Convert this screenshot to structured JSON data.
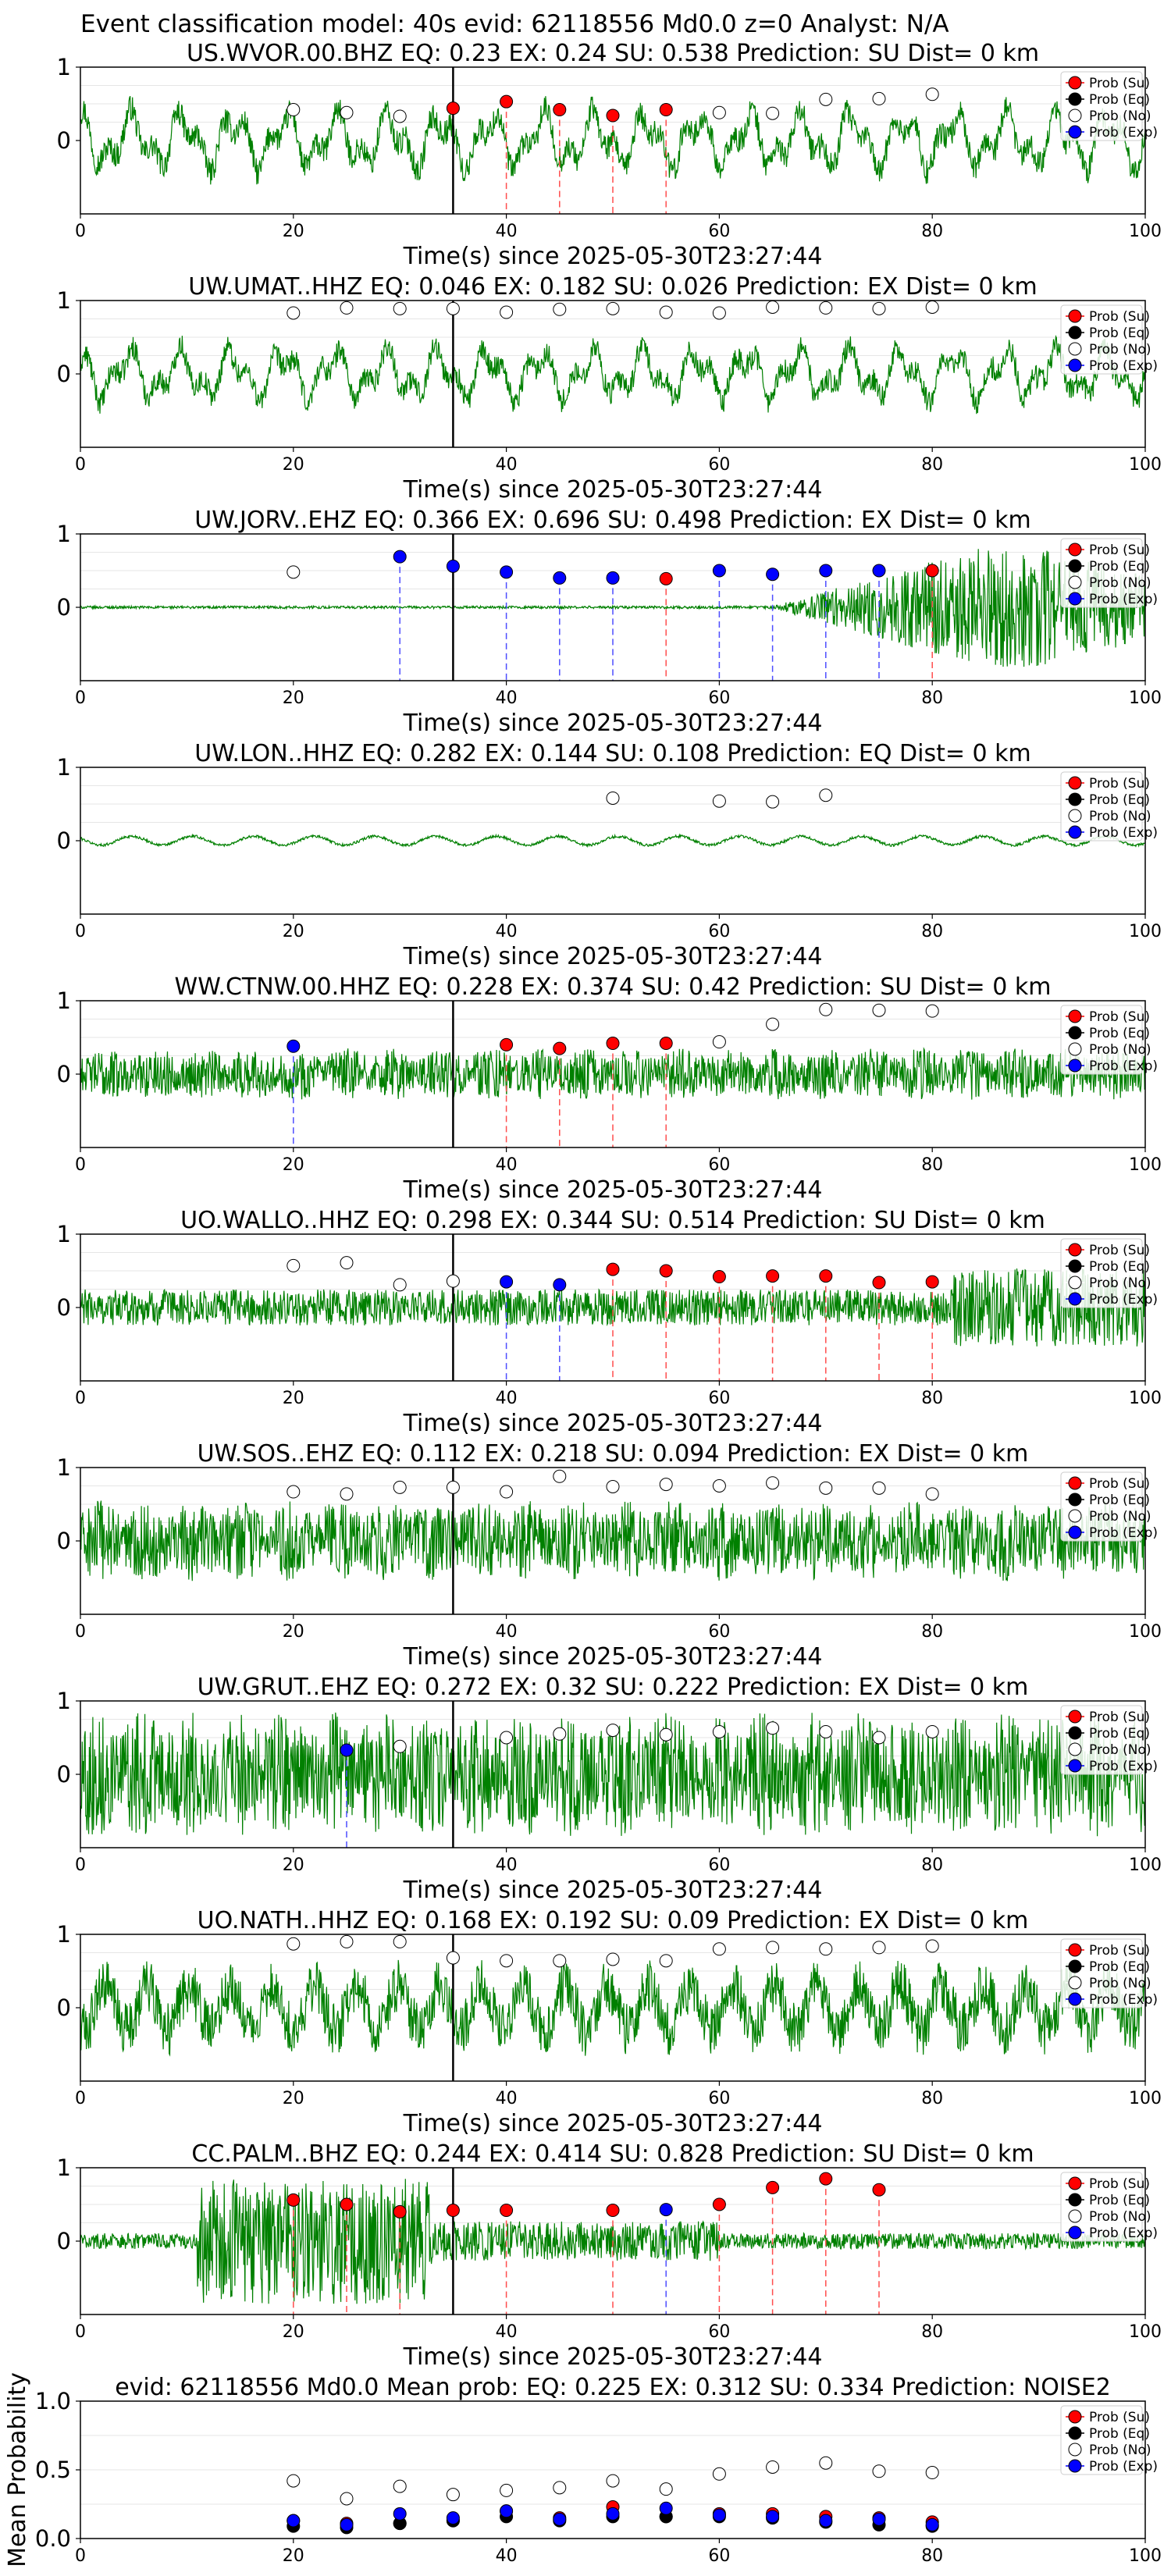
{
  "figure_title": "Event classification model: 40s evid: 62118556 Md0.0 z=0 Analyst: N/A",
  "legend_labels": [
    "Prob (Su)",
    "Prob (Eq)",
    "Prob (No)",
    "Prob (Exp)"
  ],
  "colors": {
    "su": "#ff0000",
    "eq": "#000000",
    "no": "#ffffff",
    "exp": "#0000ff",
    "waveform": "#008000",
    "su_line": "#ff4d4d",
    "exp_line": "#4d4dff",
    "origin_line": "#000000"
  },
  "chart_data": [
    {
      "type": "scatter",
      "station": "US.WVOR.00.BHZ",
      "title": "US.WVOR.00.BHZ   EQ: 0.23  EX: 0.24  SU: 0.538   Prediction: SU    Dist= 0 km",
      "xlabel": "Time(s) since 2025-05-30T23:27:44",
      "xlim": [
        0,
        100
      ],
      "ylim": [
        -1,
        1
      ],
      "xticks": [
        "0",
        "20",
        "40",
        "60",
        "80",
        "100"
      ],
      "yticks": [
        "1",
        "0"
      ],
      "origin_time": 35,
      "waveform": {
        "style": "med",
        "amplitude": 0.5
      },
      "times": [
        20,
        25,
        30,
        35,
        40,
        45,
        50,
        55,
        60,
        65,
        70,
        75,
        80
      ],
      "predicted": [
        "no",
        "no",
        "no",
        "su",
        "su",
        "su",
        "su",
        "su",
        "no",
        "no",
        "no",
        "no",
        "no"
      ],
      "probs": [
        0.42,
        0.38,
        0.33,
        0.44,
        0.53,
        0.42,
        0.34,
        0.42,
        0.38,
        0.37,
        0.56,
        0.57,
        0.63
      ],
      "legend": "upper right",
      "grid": true
    },
    {
      "type": "scatter",
      "station": "UW.UMAT..HHZ",
      "title": "UW.UMAT..HHZ   EQ: 0.046  EX: 0.182  SU: 0.026   Prediction: EX    Dist= 0 km",
      "xlabel": "Time(s) since 2025-05-30T23:27:44",
      "xlim": [
        0,
        100
      ],
      "ylim": [
        -1,
        1
      ],
      "xticks": [
        "0",
        "20",
        "40",
        "60",
        "80",
        "100"
      ],
      "yticks": [
        "1",
        "0"
      ],
      "origin_time": 35,
      "waveform": {
        "style": "med",
        "amplitude": 0.45
      },
      "times": [
        20,
        25,
        30,
        35,
        40,
        45,
        50,
        55,
        60,
        65,
        70,
        75,
        80
      ],
      "predicted": [
        "no",
        "no",
        "no",
        "no",
        "no",
        "no",
        "no",
        "no",
        "no",
        "no",
        "no",
        "no",
        "no"
      ],
      "probs": [
        0.83,
        0.9,
        0.89,
        0.89,
        0.84,
        0.88,
        0.89,
        0.84,
        0.83,
        0.91,
        0.9,
        0.89,
        0.91
      ],
      "legend": "upper right",
      "grid": true
    },
    {
      "type": "scatter",
      "station": "UW.JORV..EHZ",
      "title": "UW.JORV..EHZ   EQ: 0.366  EX: 0.696  SU: 0.498   Prediction: EX    Dist= 0 km",
      "xlabel": "Time(s) since 2025-05-30T23:27:44",
      "xlim": [
        0,
        100
      ],
      "ylim": [
        -1,
        1
      ],
      "xticks": [
        "0",
        "20",
        "40",
        "60",
        "80",
        "100"
      ],
      "yticks": [
        "1",
        "0"
      ],
      "origin_time": 35,
      "waveform": {
        "style": "quiet_then_burst",
        "amplitude": 0.9
      },
      "times": [
        20,
        30,
        35,
        40,
        45,
        50,
        55,
        60,
        65,
        70,
        75,
        80
      ],
      "predicted": [
        "no",
        "exp",
        "exp",
        "exp",
        "exp",
        "exp",
        "su",
        "exp",
        "exp",
        "exp",
        "exp",
        "su"
      ],
      "probs": [
        0.48,
        0.69,
        0.56,
        0.48,
        0.4,
        0.4,
        0.39,
        0.5,
        0.45,
        0.5,
        0.5,
        0.5
      ],
      "legend": "upper right",
      "grid": true
    },
    {
      "type": "scatter",
      "station": "UW.LON..HHZ",
      "title": "UW.LON..HHZ   EQ: 0.282  EX: 0.144  SU: 0.108   Prediction: EQ    Dist= 0 km",
      "xlabel": "Time(s) since 2025-05-30T23:27:44",
      "xlim": [
        0,
        100
      ],
      "ylim": [
        -1,
        1
      ],
      "xticks": [
        "0",
        "20",
        "40",
        "60",
        "80",
        "100"
      ],
      "yticks": [
        "1",
        "0"
      ],
      "origin_time": null,
      "waveform": {
        "style": "flat_wavy",
        "amplitude": 0.06
      },
      "times": [
        50,
        60,
        65,
        70
      ],
      "predicted": [
        "no",
        "no",
        "no",
        "no"
      ],
      "probs": [
        0.58,
        0.54,
        0.53,
        0.62
      ],
      "legend": "upper right",
      "grid": true
    },
    {
      "type": "scatter",
      "station": "WW.CTNW.00.HHZ",
      "title": "WW.CTNW.00.HHZ   EQ: 0.228  EX: 0.374  SU: 0.42   Prediction: SU    Dist= 0 km",
      "xlabel": "Time(s) since 2025-05-30T23:27:44",
      "xlim": [
        0,
        100
      ],
      "ylim": [
        -1,
        1
      ],
      "xticks": [
        "0",
        "20",
        "40",
        "60",
        "80",
        "100"
      ],
      "yticks": [
        "1",
        "0"
      ],
      "origin_time": 35,
      "waveform": {
        "style": "noisy",
        "amplitude": 0.35
      },
      "times": [
        20,
        40,
        45,
        50,
        55,
        60,
        65,
        70,
        75,
        80
      ],
      "predicted": [
        "exp",
        "su",
        "su",
        "su",
        "su",
        "no",
        "no",
        "no",
        "no",
        "no"
      ],
      "probs": [
        0.38,
        0.4,
        0.35,
        0.42,
        0.42,
        0.44,
        0.68,
        0.88,
        0.87,
        0.86
      ],
      "legend": "upper right",
      "grid": true
    },
    {
      "type": "scatter",
      "station": "UO.WALLO..HHZ",
      "title": "UO.WALLO..HHZ   EQ: 0.298  EX: 0.344  SU: 0.514   Prediction: SU    Dist= 0 km",
      "xlabel": "Time(s) since 2025-05-30T23:27:44",
      "xlim": [
        0,
        100
      ],
      "ylim": [
        -1,
        1
      ],
      "xticks": [
        "0",
        "20",
        "40",
        "60",
        "80",
        "100"
      ],
      "yticks": [
        "1",
        "0"
      ],
      "origin_time": 35,
      "waveform": {
        "style": "noisy_growing",
        "amplitude": 0.35
      },
      "times": [
        20,
        25,
        30,
        35,
        40,
        45,
        50,
        55,
        60,
        65,
        70,
        75,
        80
      ],
      "predicted": [
        "no",
        "no",
        "no",
        "no",
        "exp",
        "exp",
        "su",
        "su",
        "su",
        "su",
        "su",
        "su",
        "su"
      ],
      "probs": [
        0.57,
        0.61,
        0.31,
        0.36,
        0.35,
        0.31,
        0.52,
        0.5,
        0.42,
        0.43,
        0.43,
        0.34,
        0.35
      ],
      "legend": "upper right",
      "grid": true
    },
    {
      "type": "scatter",
      "station": "UW.SOS..EHZ",
      "title": "UW.SOS..EHZ   EQ: 0.112  EX: 0.218  SU: 0.094   Prediction: EX    Dist= 0 km",
      "xlabel": "Time(s) since 2025-05-30T23:27:44",
      "xlim": [
        0,
        100
      ],
      "ylim": [
        -1,
        1
      ],
      "xticks": [
        "0",
        "20",
        "40",
        "60",
        "80",
        "100"
      ],
      "yticks": [
        "1",
        "0"
      ],
      "origin_time": 35,
      "waveform": {
        "style": "noisy",
        "amplitude": 0.55
      },
      "times": [
        20,
        25,
        30,
        35,
        40,
        45,
        50,
        55,
        60,
        65,
        70,
        75,
        80
      ],
      "predicted": [
        "no",
        "no",
        "no",
        "no",
        "no",
        "no",
        "no",
        "no",
        "no",
        "no",
        "no",
        "no",
        "no"
      ],
      "probs": [
        0.67,
        0.64,
        0.73,
        0.73,
        0.67,
        0.88,
        0.74,
        0.77,
        0.75,
        0.79,
        0.72,
        0.72,
        0.64
      ],
      "legend": "upper right",
      "grid": true
    },
    {
      "type": "scatter",
      "station": "UW.GRUT..EHZ",
      "title": "UW.GRUT..EHZ   EQ: 0.272  EX: 0.32  SU: 0.222   Prediction: EX    Dist= 0 km",
      "xlabel": "Time(s) since 2025-05-30T23:27:44",
      "xlim": [
        0,
        100
      ],
      "ylim": [
        -1,
        1
      ],
      "xticks": [
        "0",
        "20",
        "40",
        "60",
        "80",
        "100"
      ],
      "yticks": [
        "1",
        "0"
      ],
      "origin_time": 35,
      "waveform": {
        "style": "noisy",
        "amplitude": 0.85
      },
      "times": [
        25,
        30,
        40,
        45,
        50,
        55,
        60,
        65,
        70,
        75,
        80
      ],
      "predicted": [
        "exp",
        "no",
        "no",
        "no",
        "no",
        "no",
        "no",
        "no",
        "no",
        "no",
        "no"
      ],
      "probs": [
        0.33,
        0.38,
        0.5,
        0.55,
        0.6,
        0.54,
        0.58,
        0.63,
        0.58,
        0.5,
        0.58
      ],
      "legend": "upper right",
      "grid": true
    },
    {
      "type": "scatter",
      "station": "UO.NATH..HHZ",
      "title": "UO.NATH..HHZ   EQ: 0.168  EX: 0.192  SU: 0.09   Prediction: EX    Dist= 0 km",
      "xlabel": "Time(s) since 2025-05-30T23:27:44",
      "xlim": [
        0,
        100
      ],
      "ylim": [
        -1,
        1
      ],
      "xticks": [
        "0",
        "20",
        "40",
        "60",
        "80",
        "100"
      ],
      "yticks": [
        "1",
        "0"
      ],
      "origin_time": 35,
      "waveform": {
        "style": "noisy_med",
        "amplitude": 0.6
      },
      "times": [
        20,
        25,
        30,
        35,
        40,
        45,
        50,
        55,
        60,
        65,
        70,
        75,
        80
      ],
      "predicted": [
        "no",
        "no",
        "no",
        "no",
        "no",
        "no",
        "no",
        "no",
        "no",
        "no",
        "no",
        "no",
        "no"
      ],
      "probs": [
        0.87,
        0.9,
        0.9,
        0.68,
        0.64,
        0.64,
        0.66,
        0.64,
        0.8,
        0.82,
        0.8,
        0.82,
        0.84
      ],
      "legend": "upper right",
      "grid": true
    },
    {
      "type": "scatter",
      "station": "CC.PALM..BHZ",
      "title": "CC.PALM..BHZ   EQ: 0.244  EX: 0.414  SU: 0.828   Prediction: SU    Dist= 0 km",
      "xlabel": "Time(s) since 2025-05-30T23:27:44",
      "xlim": [
        0,
        100
      ],
      "ylim": [
        -1,
        1
      ],
      "xticks": [
        "0",
        "20",
        "40",
        "60",
        "80",
        "100"
      ],
      "yticks": [
        "1",
        "0"
      ],
      "origin_time": 35,
      "waveform": {
        "style": "burst_early",
        "amplitude": 0.9
      },
      "times": [
        20,
        25,
        30,
        35,
        40,
        50,
        55,
        60,
        65,
        70,
        75
      ],
      "predicted": [
        "su",
        "su",
        "su",
        "su",
        "su",
        "su",
        "exp",
        "su",
        "su",
        "su",
        "su"
      ],
      "probs": [
        0.56,
        0.5,
        0.4,
        0.42,
        0.42,
        0.42,
        0.43,
        0.5,
        0.73,
        0.85,
        0.7
      ],
      "legend": "upper right",
      "grid": true
    },
    {
      "type": "scatter",
      "title": "evid: 62118556  Md0.0   Mean prob:   EQ: 0.225  EX: 0.312  SU: 0.334   Prediction: NOISE2",
      "xlabel": "",
      "ylabel": "Mean Probability",
      "xlim": [
        0,
        100
      ],
      "ylim": [
        0,
        1
      ],
      "xticks": [
        "0",
        "20",
        "40",
        "60",
        "80",
        "100"
      ],
      "yticks": [
        "1.0",
        "0.5",
        "0.0"
      ],
      "times": [
        20,
        25,
        30,
        35,
        40,
        45,
        50,
        55,
        60,
        65,
        70,
        75,
        80
      ],
      "series": [
        {
          "name": "Prob (No)",
          "values": [
            0.42,
            0.29,
            0.38,
            0.32,
            0.35,
            0.37,
            0.42,
            0.36,
            0.47,
            0.52,
            0.55,
            0.49,
            0.48
          ]
        },
        {
          "name": "Prob (Su)",
          "values": [
            0.13,
            0.11,
            0.11,
            0.13,
            0.2,
            0.15,
            0.23,
            0.16,
            0.18,
            0.18,
            0.16,
            0.15,
            0.12
          ]
        },
        {
          "name": "Prob (Eq)",
          "values": [
            0.09,
            0.08,
            0.11,
            0.13,
            0.16,
            0.13,
            0.16,
            0.16,
            0.16,
            0.15,
            0.12,
            0.1,
            0.09
          ]
        },
        {
          "name": "Prob (Exp)",
          "values": [
            0.13,
            0.1,
            0.18,
            0.15,
            0.2,
            0.14,
            0.18,
            0.22,
            0.17,
            0.16,
            0.13,
            0.14,
            0.1
          ]
        }
      ],
      "legend": "upper right",
      "grid": true
    }
  ]
}
